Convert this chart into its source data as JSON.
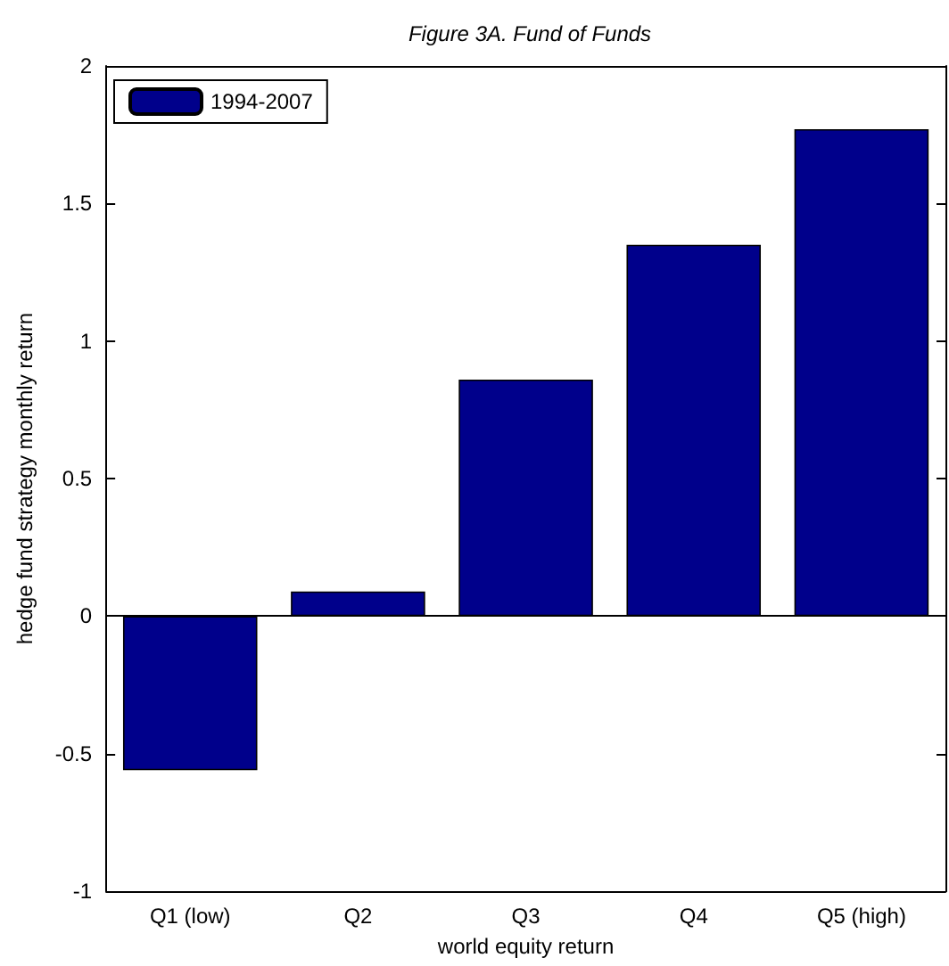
{
  "chart_data": {
    "type": "bar",
    "title": "Figure 3A. Fund of Funds",
    "xlabel": "world equity return",
    "ylabel": "hedge fund strategy monthly return",
    "categories": [
      "Q1 (low)",
      "Q2",
      "Q3",
      "Q4",
      "Q5 (high)"
    ],
    "series": [
      {
        "name": "1994-2007",
        "color": "#00008b",
        "values": [
          -0.56,
          0.09,
          0.86,
          1.35,
          1.77
        ]
      }
    ],
    "ref_lines": [
      {
        "axis": "y",
        "value": 0,
        "color": "#000000"
      }
    ],
    "ylim": [
      -1,
      2
    ],
    "yticks": [
      -1,
      -0.5,
      0,
      0.5,
      1,
      1.5,
      2
    ],
    "grid": false,
    "legend": "top left"
  }
}
